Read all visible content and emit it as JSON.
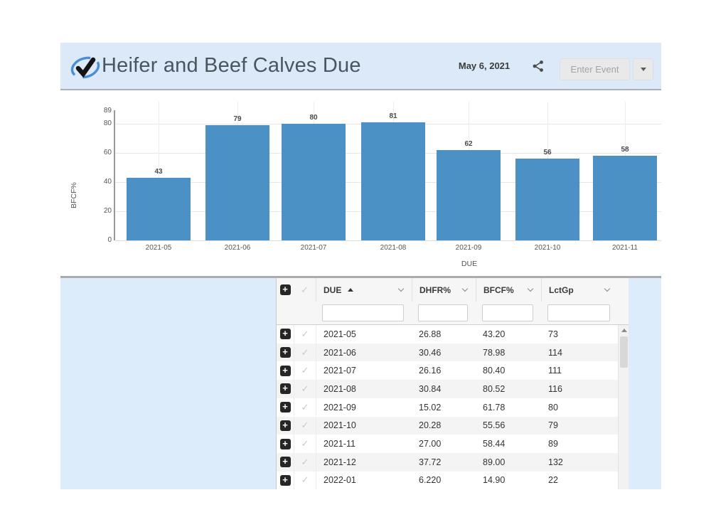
{
  "header": {
    "title": "Heifer and Beef Calves Due",
    "date": "May 6, 2021",
    "enter_event_label": "Enter Event",
    "icons": {
      "logo": "check-swirl-logo-icon",
      "share": "share-icon",
      "dropdown": "caret-down-icon"
    }
  },
  "colors": {
    "header_bg": "#dbe9f8",
    "panel_bg": "#ddecfa",
    "bar": "#4b91c5",
    "divider": "#ababab"
  },
  "chart_data": {
    "type": "bar",
    "title": "",
    "categories": [
      "2021-05",
      "2021-06",
      "2021-07",
      "2021-08",
      "2021-09",
      "2021-10",
      "2021-11"
    ],
    "values": [
      43,
      79,
      80,
      81,
      62,
      56,
      58
    ],
    "xlabel": "DUE",
    "ylabel": "BFCF%",
    "yticks": [
      0,
      20,
      40,
      60,
      80
    ],
    "ymax_label": "89",
    "ylim": [
      0,
      89
    ],
    "grid": true,
    "legend": "none",
    "bar_color": "#4b91c5"
  },
  "table": {
    "columns": [
      {
        "label": "DUE",
        "sort": "asc"
      },
      {
        "label": "DHFR%"
      },
      {
        "label": "BFCF%"
      },
      {
        "label": "LctGp"
      }
    ],
    "filter_values": [
      "",
      "",
      "",
      ""
    ],
    "rows": [
      [
        "2021-05",
        "26.88",
        "43.20",
        "73"
      ],
      [
        "2021-06",
        "30.46",
        "78.98",
        "114"
      ],
      [
        "2021-07",
        "26.16",
        "80.40",
        "111"
      ],
      [
        "2021-08",
        "30.84",
        "80.52",
        "116"
      ],
      [
        "2021-09",
        "15.02",
        "61.78",
        "80"
      ],
      [
        "2021-10",
        "20.28",
        "55.56",
        "79"
      ],
      [
        "2021-11",
        "27.00",
        "58.44",
        "89"
      ],
      [
        "2021-12",
        "37.72",
        "89.00",
        "132"
      ],
      [
        "2022-01",
        "6.220",
        "14.90",
        "22"
      ]
    ],
    "icons": {
      "expand": "plus-square-icon",
      "row_select": "check-icon",
      "column_menu": "chevron-down-icon",
      "sort_asc": "triangle-up-icon",
      "scroll_up": "triangle-up-icon"
    }
  }
}
